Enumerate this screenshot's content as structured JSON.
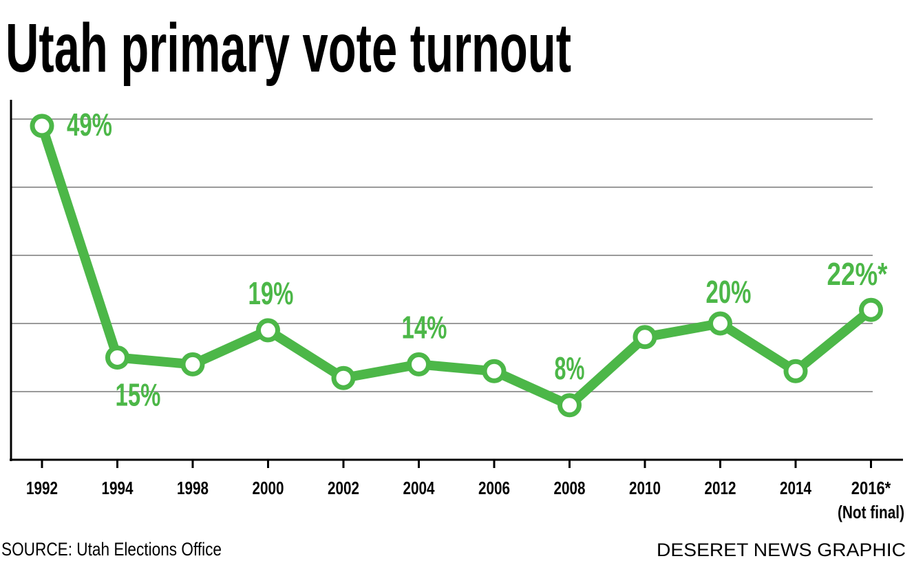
{
  "chart_data": {
    "type": "line",
    "title": "Utah primary vote turnout",
    "categories": [
      "1992",
      "1994",
      "1998",
      "2000",
      "2002",
      "2004",
      "2006",
      "2008",
      "2010",
      "2012",
      "2014",
      "2016*"
    ],
    "category_note": "(Not final)",
    "values": [
      49,
      15,
      14,
      19,
      12,
      14,
      13,
      8,
      18,
      20,
      13,
      22
    ],
    "value_labels": [
      "49%",
      "15%",
      null,
      "19%",
      null,
      "14%",
      null,
      "8%",
      null,
      "20%",
      null,
      "22%*"
    ],
    "color": "#4cb748",
    "ylim": [
      0,
      50
    ],
    "yticks": [
      10,
      20,
      30,
      40,
      50
    ],
    "grid": true,
    "ytick_labels": false,
    "source": "SOURCE: Utah Elections Office",
    "credit": "DESERET NEWS GRAPHIC"
  }
}
